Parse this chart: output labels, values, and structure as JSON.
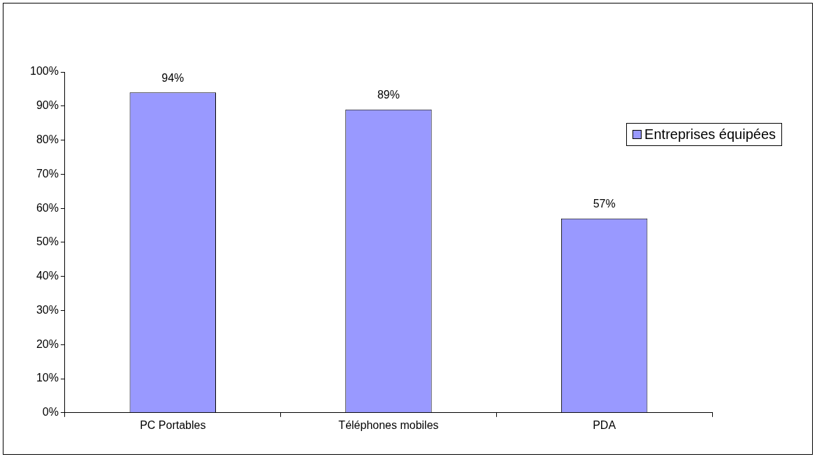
{
  "chart_data": {
    "type": "bar",
    "categories": [
      "PC Portables",
      "Téléphones mobiles",
      "PDA"
    ],
    "series": [
      {
        "name": "Entreprises équipées",
        "color": "#9999ff",
        "values": [
          94,
          89,
          57
        ],
        "value_labels": [
          "94%",
          "89%",
          "57%"
        ]
      }
    ],
    "ylim": [
      0,
      100
    ],
    "yticks": [
      {
        "value": 0,
        "label": "0%"
      },
      {
        "value": 10,
        "label": "10%"
      },
      {
        "value": 20,
        "label": "20%"
      },
      {
        "value": 30,
        "label": "30%"
      },
      {
        "value": 40,
        "label": "40%"
      },
      {
        "value": 50,
        "label": "50%"
      },
      {
        "value": 60,
        "label": "60%"
      },
      {
        "value": 70,
        "label": "70%"
      },
      {
        "value": 80,
        "label": "80%"
      },
      {
        "value": 90,
        "label": "90%"
      },
      {
        "value": 100,
        "label": "100%"
      }
    ],
    "legend": "right"
  }
}
